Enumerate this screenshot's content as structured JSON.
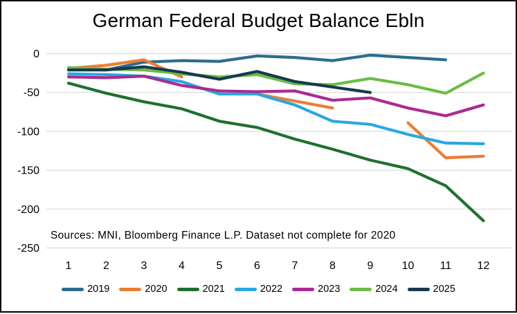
{
  "chart_data": {
    "type": "line",
    "title": "German Federal Budget Balance Ebln",
    "source_note": "Sources: MNI,  Bloomberg Finance L.P. Dataset not complete for 2020",
    "x_labels": [
      "1",
      "2",
      "3",
      "4",
      "5",
      "6",
      "7",
      "8",
      "9",
      "10",
      "11",
      "12"
    ],
    "xlabel": "",
    "ylabel": "",
    "ylim": [
      -250,
      0
    ],
    "yticks": [
      0,
      -50,
      -100,
      -150,
      -200,
      -250
    ],
    "grid": "horizontal",
    "gridline_color": "#d9d9d9",
    "legend_position": "bottom",
    "note": "values are cumulative federal budget balance in EUR bln by month; null = no data shown (gap in line)",
    "series": [
      {
        "name": "2019",
        "color": "#2d6d8e",
        "values": [
          -19,
          -21,
          -11,
          -9,
          -10,
          -3,
          -5,
          -9,
          -2,
          -5,
          -8,
          null
        ]
      },
      {
        "name": "2020",
        "color": "#ed7d31",
        "values": [
          -19,
          -15,
          -8,
          -30,
          null,
          -52,
          -61,
          -70,
          null,
          -89,
          -134,
          -132
        ]
      },
      {
        "name": "2021",
        "color": "#1e7030",
        "values": [
          -38,
          -51,
          -62,
          -71,
          -87,
          -95,
          -110,
          -123,
          -137,
          -148,
          -170,
          -215
        ]
      },
      {
        "name": "2022",
        "color": "#29a8e0",
        "values": [
          -26,
          -27,
          -29,
          -36,
          -52,
          -52,
          -66,
          -87,
          -91,
          -104,
          -115,
          -116
        ]
      },
      {
        "name": "2023",
        "color": "#a92b90",
        "values": [
          -30,
          -31,
          -29,
          -41,
          -48,
          -49,
          -48,
          -60,
          -57,
          -70,
          -80,
          -66
        ]
      },
      {
        "name": "2024",
        "color": "#6bbd45",
        "values": [
          -18,
          -20,
          -21,
          -26,
          -30,
          -27,
          -39,
          -40,
          -32,
          -40,
          -51,
          -25
        ]
      },
      {
        "name": "2025",
        "color": "#17394f",
        "values": [
          -21,
          -21,
          -17,
          -24,
          -33,
          -23,
          -36,
          -43,
          -50,
          null,
          null,
          null
        ]
      }
    ]
  }
}
